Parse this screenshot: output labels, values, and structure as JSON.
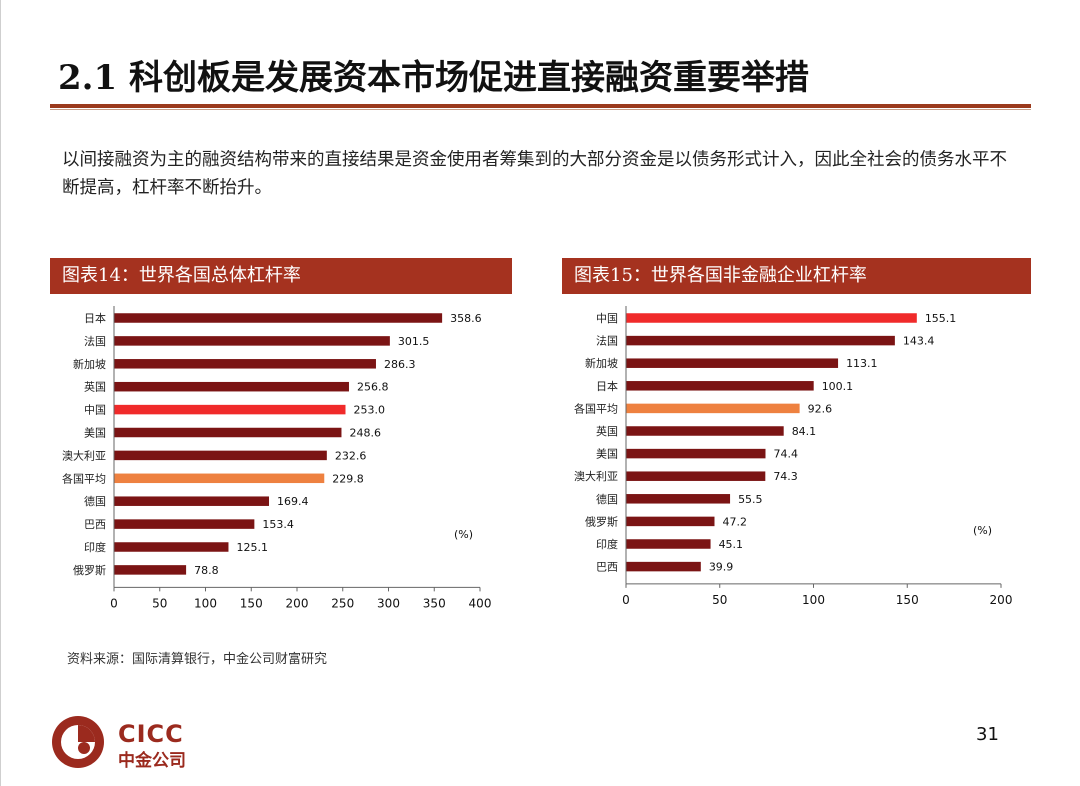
{
  "slide": {
    "title": "2.1 科创板是发展资本市场促进直接融资重要举措",
    "intro": "以间接融资为主的融资结构带来的直接结果是资金使用者筹集到的大部分资金是以债务形式计入，因此全社会的债务水平不断提高，杠杆率不断抬升。",
    "source": "资料来源：国际清算银行，中金公司财富研究",
    "page_number": "31",
    "logo_en": "CICC",
    "logo_cn": "中金公司"
  },
  "colors": {
    "accent": "#a5321f",
    "bar_default": "#7b1414",
    "bar_china": "#f02a2a",
    "bar_average": "#ee8140"
  },
  "chart_data": [
    {
      "type": "bar",
      "orientation": "horizontal",
      "title": "图表14：世界各国总体杠杆率",
      "unit_label": "(%)",
      "categories": [
        "日本",
        "法国",
        "新加坡",
        "英国",
        "中国",
        "美国",
        "澳大利亚",
        "各国平均",
        "德国",
        "巴西",
        "印度",
        "俄罗斯"
      ],
      "values": [
        358.6,
        301.5,
        286.3,
        256.8,
        253.0,
        248.6,
        232.6,
        229.8,
        169.4,
        153.4,
        125.1,
        78.8
      ],
      "value_labels": [
        "358.6",
        "301.5",
        "286.3",
        "256.8",
        "253.0",
        "248.6",
        "232.6",
        "229.8",
        "169.4",
        "153.4",
        "125.1",
        "78.8"
      ],
      "highlight": {
        "中国": "china",
        "各国平均": "average"
      },
      "xlim": [
        0,
        400
      ],
      "xticks": [
        0,
        50,
        100,
        150,
        200,
        250,
        300,
        350,
        400
      ]
    },
    {
      "type": "bar",
      "orientation": "horizontal",
      "title": "图表15：世界各国非金融企业杠杆率",
      "unit_label": "(%)",
      "categories": [
        "中国",
        "法国",
        "新加坡",
        "日本",
        "各国平均",
        "英国",
        "美国",
        "澳大利亚",
        "德国",
        "俄罗斯",
        "印度",
        "巴西"
      ],
      "values": [
        155.1,
        143.4,
        113.1,
        100.1,
        92.6,
        84.1,
        74.4,
        74.3,
        55.5,
        47.2,
        45.1,
        39.9
      ],
      "value_labels": [
        "155.1",
        "143.4",
        "113.1",
        "100.1",
        "92.6",
        "84.1",
        "74.4",
        "74.3",
        "55.5",
        "47.2",
        "45.1",
        "39.9"
      ],
      "highlight": {
        "中国": "china",
        "各国平均": "average"
      },
      "xlim": [
        0,
        200
      ],
      "xticks": [
        0,
        50,
        100,
        150,
        200
      ]
    }
  ]
}
